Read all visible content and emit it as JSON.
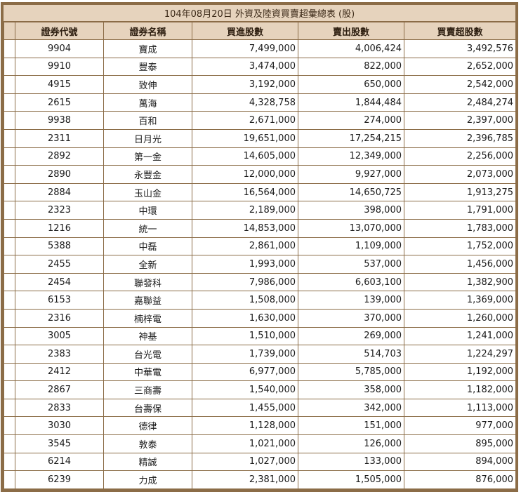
{
  "title": "104年08月20日 外資及陸資買賣超彙總表 (股)",
  "columns": [
    "證券代號",
    "證券名稱",
    "買進股數",
    "賣出股數",
    "買賣超股數"
  ],
  "rows": [
    {
      "code": "9904",
      "name": "寶成",
      "buy": "7,499,000",
      "sell": "4,006,424",
      "net": "3,492,576"
    },
    {
      "code": "9910",
      "name": "豐泰",
      "buy": "3,474,000",
      "sell": "822,000",
      "net": "2,652,000"
    },
    {
      "code": "4915",
      "name": "致伸",
      "buy": "3,192,000",
      "sell": "650,000",
      "net": "2,542,000"
    },
    {
      "code": "2615",
      "name": "萬海",
      "buy": "4,328,758",
      "sell": "1,844,484",
      "net": "2,484,274"
    },
    {
      "code": "9938",
      "name": "百和",
      "buy": "2,671,000",
      "sell": "274,000",
      "net": "2,397,000"
    },
    {
      "code": "2311",
      "name": "日月光",
      "buy": "19,651,000",
      "sell": "17,254,215",
      "net": "2,396,785"
    },
    {
      "code": "2892",
      "name": "第一金",
      "buy": "14,605,000",
      "sell": "12,349,000",
      "net": "2,256,000"
    },
    {
      "code": "2890",
      "name": "永豐金",
      "buy": "12,000,000",
      "sell": "9,927,000",
      "net": "2,073,000"
    },
    {
      "code": "2884",
      "name": "玉山金",
      "buy": "16,564,000",
      "sell": "14,650,725",
      "net": "1,913,275"
    },
    {
      "code": "2323",
      "name": "中環",
      "buy": "2,189,000",
      "sell": "398,000",
      "net": "1,791,000"
    },
    {
      "code": "1216",
      "name": "統一",
      "buy": "14,853,000",
      "sell": "13,070,000",
      "net": "1,783,000"
    },
    {
      "code": "5388",
      "name": "中磊",
      "buy": "2,861,000",
      "sell": "1,109,000",
      "net": "1,752,000"
    },
    {
      "code": "2455",
      "name": "全新",
      "buy": "1,993,000",
      "sell": "537,000",
      "net": "1,456,000"
    },
    {
      "code": "2454",
      "name": "聯發科",
      "buy": "7,986,000",
      "sell": "6,603,100",
      "net": "1,382,900"
    },
    {
      "code": "6153",
      "name": "嘉聯益",
      "buy": "1,508,000",
      "sell": "139,000",
      "net": "1,369,000"
    },
    {
      "code": "2316",
      "name": "楠梓電",
      "buy": "1,630,000",
      "sell": "370,000",
      "net": "1,260,000"
    },
    {
      "code": "3005",
      "name": "神基",
      "buy": "1,510,000",
      "sell": "269,000",
      "net": "1,241,000"
    },
    {
      "code": "2383",
      "name": "台光電",
      "buy": "1,739,000",
      "sell": "514,703",
      "net": "1,224,297"
    },
    {
      "code": "2412",
      "name": "中華電",
      "buy": "6,977,000",
      "sell": "5,785,000",
      "net": "1,192,000"
    },
    {
      "code": "2867",
      "name": "三商壽",
      "buy": "1,540,000",
      "sell": "358,000",
      "net": "1,182,000"
    },
    {
      "code": "2833",
      "name": "台壽保",
      "buy": "1,455,000",
      "sell": "342,000",
      "net": "1,113,000"
    },
    {
      "code": "3030",
      "name": "德律",
      "buy": "1,128,000",
      "sell": "151,000",
      "net": "977,000"
    },
    {
      "code": "3545",
      "name": "敦泰",
      "buy": "1,021,000",
      "sell": "126,000",
      "net": "895,000"
    },
    {
      "code": "6214",
      "name": "精誠",
      "buy": "1,027,000",
      "sell": "133,000",
      "net": "894,000"
    },
    {
      "code": "6239",
      "name": "力成",
      "buy": "2,381,000",
      "sell": "1,505,000",
      "net": "876,000"
    }
  ]
}
